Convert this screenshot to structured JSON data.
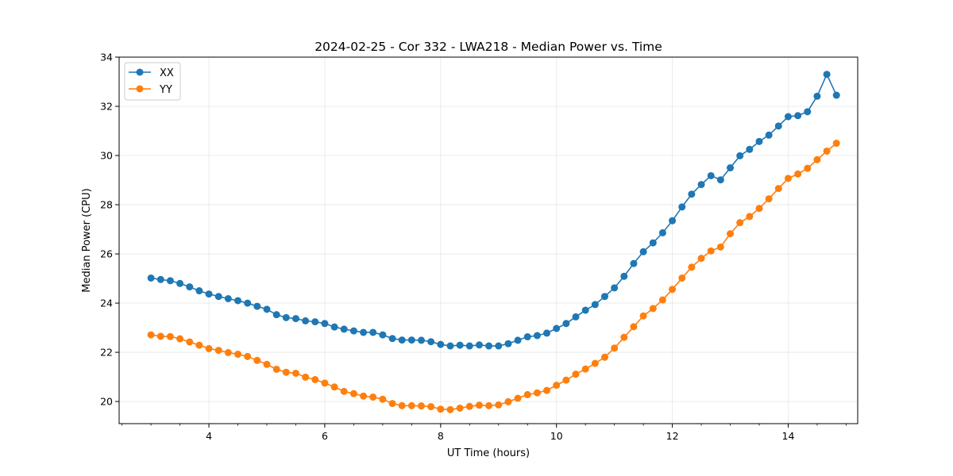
{
  "chart_data": {
    "type": "line",
    "title": "2024-02-25 - Cor 332 - LWA218 - Median Power vs. Time",
    "xlabel": "UT Time (hours)",
    "ylabel": "Median Power (CPU)",
    "xlim": [
      2.45,
      15.2
    ],
    "ylim": [
      19.1,
      34.0
    ],
    "xticks": [
      4,
      6,
      8,
      10,
      12,
      14
    ],
    "xtick_labels": [
      "4",
      "6",
      "8",
      "10",
      "12",
      "14"
    ],
    "yticks": [
      20,
      22,
      24,
      26,
      28,
      30,
      32,
      34
    ],
    "ytick_labels": [
      "20",
      "22",
      "24",
      "26",
      "28",
      "30",
      "32",
      "34"
    ],
    "grid": true,
    "legend_position": "top-left",
    "x": [
      3.0,
      3.167,
      3.333,
      3.5,
      3.667,
      3.833,
      4.0,
      4.167,
      4.333,
      4.5,
      4.667,
      4.833,
      5.0,
      5.167,
      5.333,
      5.5,
      5.667,
      5.833,
      6.0,
      6.167,
      6.333,
      6.5,
      6.667,
      6.833,
      7.0,
      7.167,
      7.333,
      7.5,
      7.667,
      7.833,
      8.0,
      8.167,
      8.333,
      8.5,
      8.667,
      8.833,
      9.0,
      9.167,
      9.333,
      9.5,
      9.667,
      9.833,
      10.0,
      10.167,
      10.333,
      10.5,
      10.667,
      10.833,
      11.0,
      11.167,
      11.333,
      11.5,
      11.667,
      11.833,
      12.0,
      12.167,
      12.333,
      12.5,
      12.667,
      12.833,
      13.0,
      13.167,
      13.333,
      13.5,
      13.667,
      13.833,
      14.0,
      14.167,
      14.333,
      14.5,
      14.667,
      14.833
    ],
    "series": [
      {
        "name": "XX",
        "color": "#1f77b4",
        "values": [
          25.02,
          24.96,
          24.91,
          24.8,
          24.66,
          24.5,
          24.37,
          24.27,
          24.18,
          24.1,
          24.0,
          23.87,
          23.75,
          23.53,
          23.41,
          23.37,
          23.28,
          23.24,
          23.17,
          23.03,
          22.94,
          22.87,
          22.81,
          22.81,
          22.71,
          22.56,
          22.5,
          22.5,
          22.49,
          22.43,
          22.32,
          22.26,
          22.29,
          22.26,
          22.3,
          22.26,
          22.26,
          22.35,
          22.49,
          22.63,
          22.68,
          22.78,
          22.97,
          23.17,
          23.44,
          23.71,
          23.94,
          24.27,
          24.62,
          25.09,
          25.61,
          26.09,
          26.45,
          26.86,
          27.35,
          27.91,
          28.43,
          28.82,
          29.18,
          29.01,
          29.5,
          29.99,
          30.25,
          30.57,
          30.83,
          31.2,
          31.58,
          31.62,
          31.78,
          32.41,
          33.3,
          32.45
        ]
      },
      {
        "name": "YY",
        "color": "#ff7f0e",
        "values": [
          22.71,
          22.65,
          22.64,
          22.55,
          22.42,
          22.29,
          22.15,
          22.08,
          21.99,
          21.92,
          21.83,
          21.67,
          21.51,
          21.31,
          21.19,
          21.15,
          20.99,
          20.89,
          20.75,
          20.59,
          20.41,
          20.32,
          20.22,
          20.18,
          20.09,
          19.92,
          19.83,
          19.83,
          19.82,
          19.79,
          19.69,
          19.67,
          19.73,
          19.8,
          19.85,
          19.83,
          19.86,
          19.99,
          20.13,
          20.28,
          20.35,
          20.45,
          20.66,
          20.87,
          21.11,
          21.32,
          21.55,
          21.8,
          22.17,
          22.61,
          23.04,
          23.48,
          23.78,
          24.13,
          24.56,
          25.02,
          25.46,
          25.82,
          26.12,
          26.28,
          26.82,
          27.27,
          27.52,
          27.85,
          28.24,
          28.66,
          29.07,
          29.25,
          29.48,
          29.83,
          30.18,
          30.5
        ]
      }
    ]
  }
}
